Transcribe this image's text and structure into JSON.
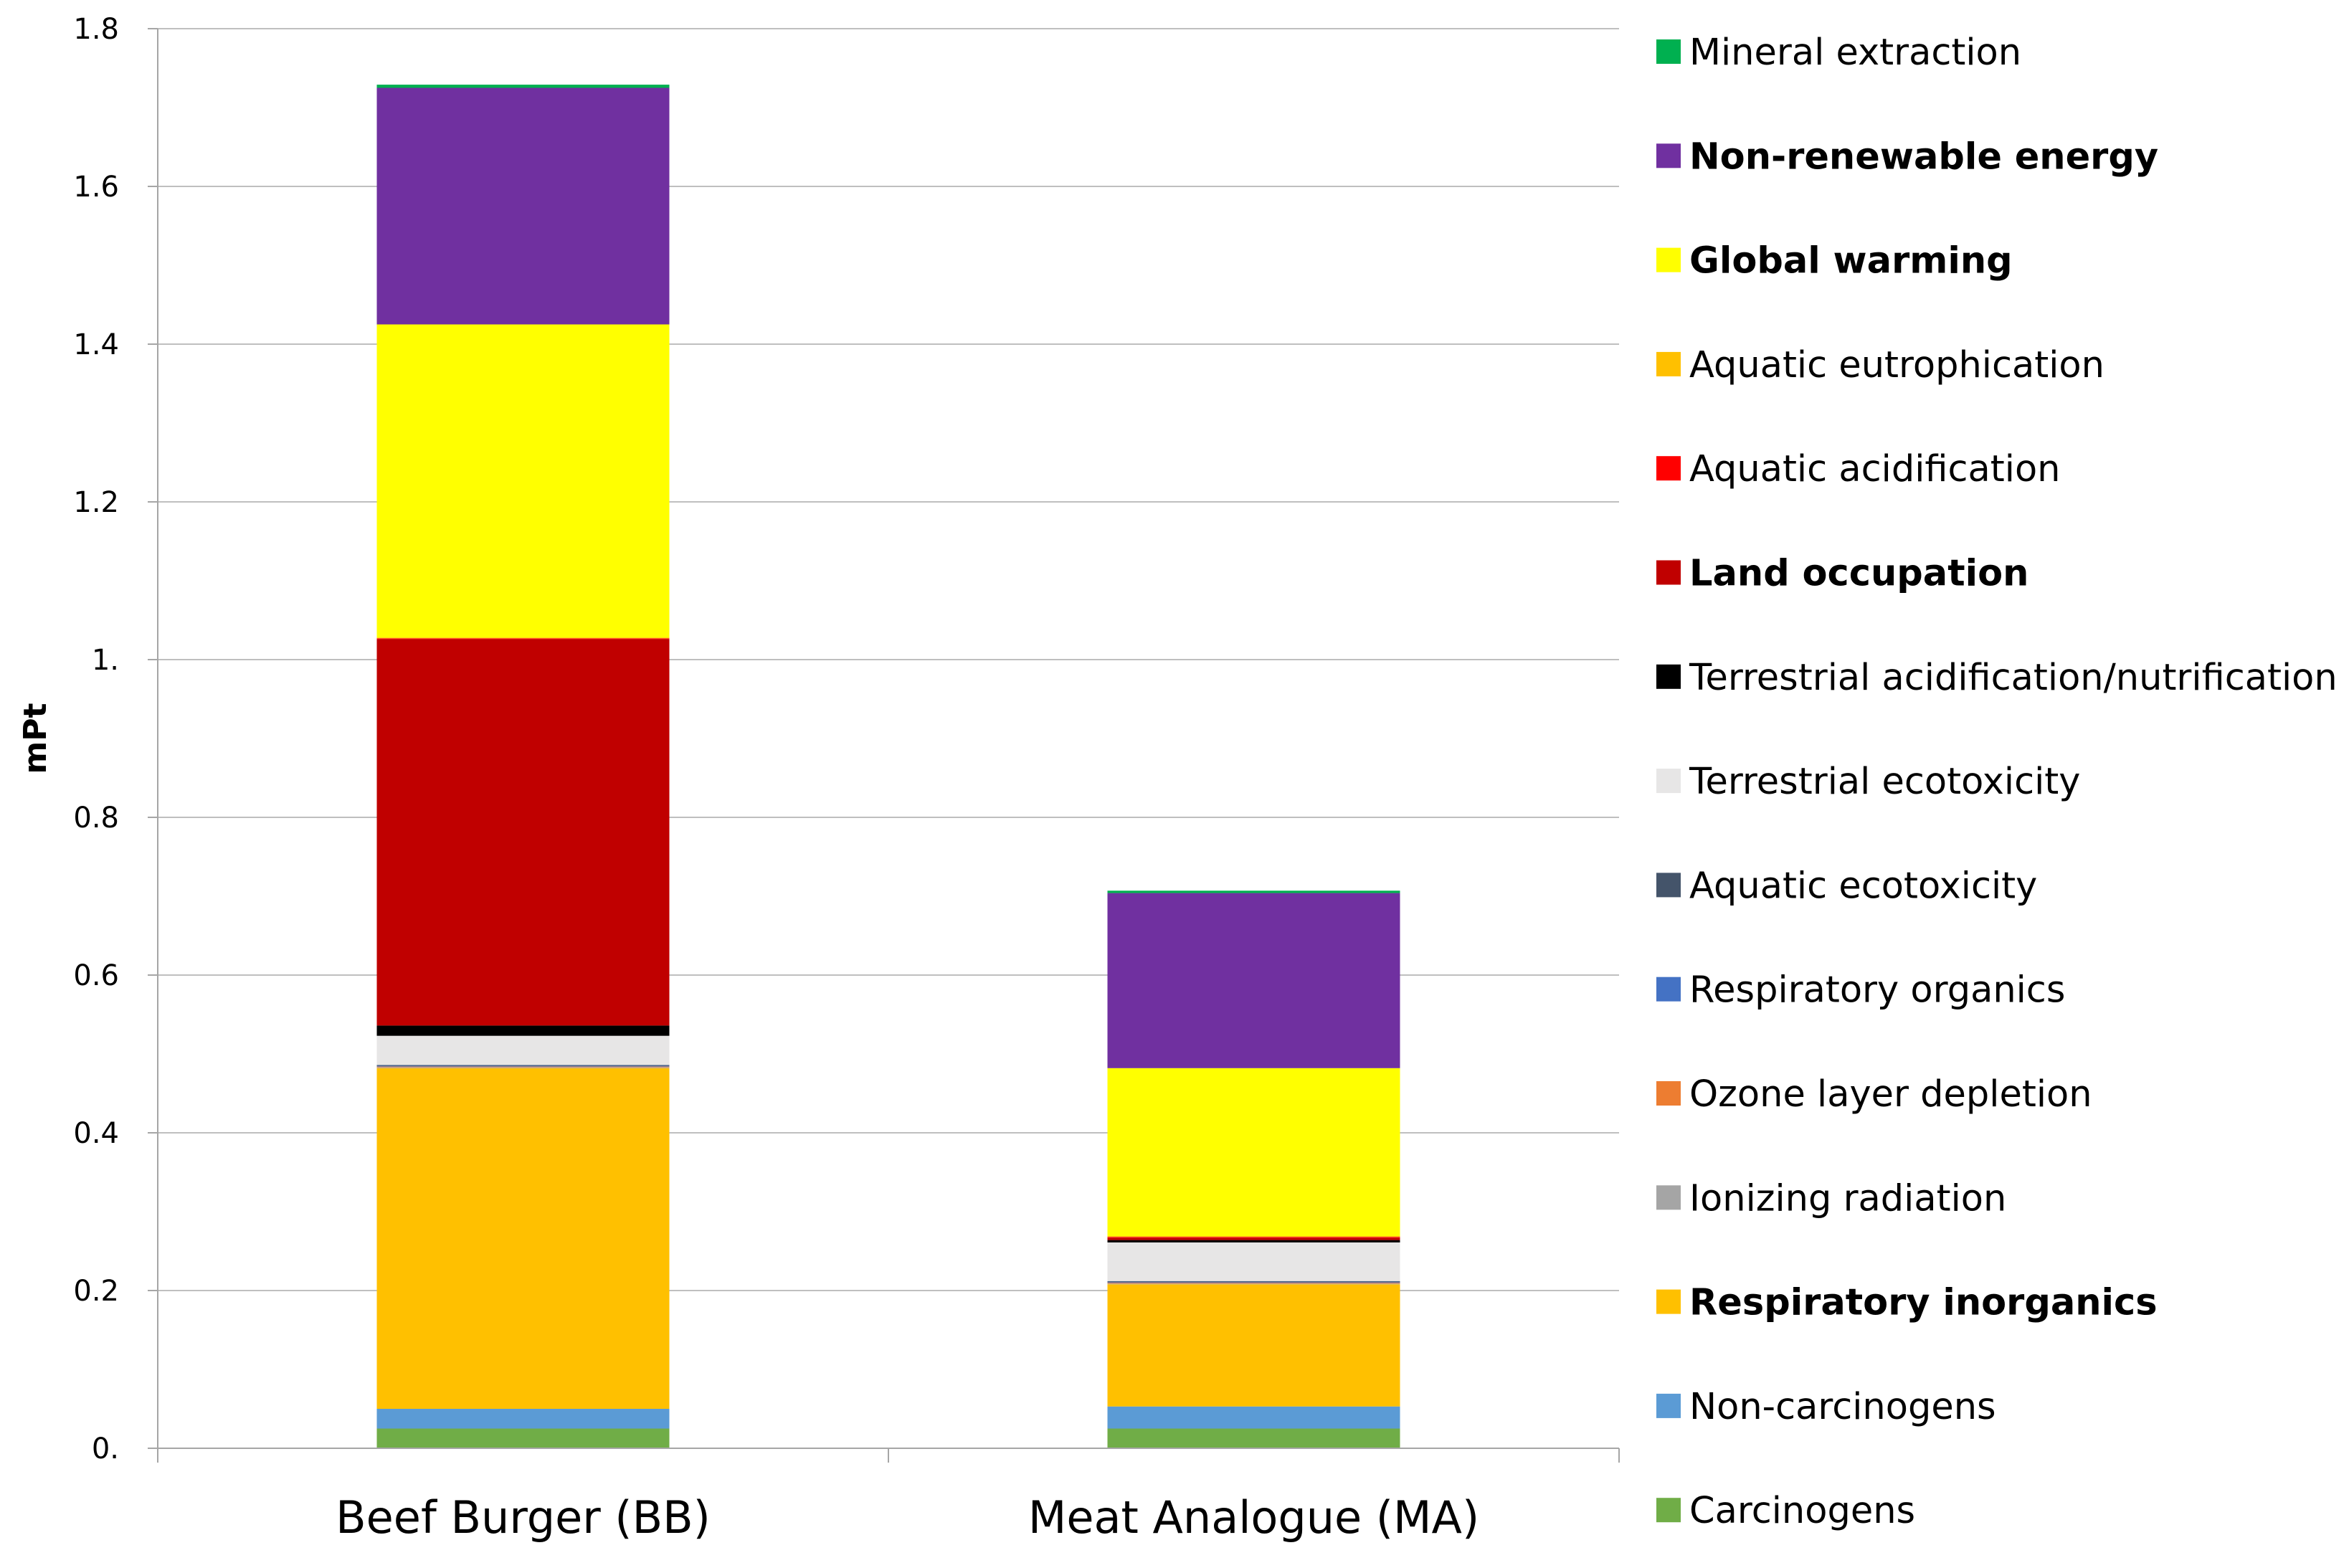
{
  "chart_data": {
    "type": "bar",
    "stacked": true,
    "title": "",
    "xlabel": "",
    "ylabel": "mPt",
    "ylim": [
      0,
      1.8
    ],
    "y_ticks": [
      {
        "value": 0,
        "label": "0."
      },
      {
        "value": 0.2,
        "label": "0.2"
      },
      {
        "value": 0.4,
        "label": "0.4"
      },
      {
        "value": 0.6,
        "label": "0.6"
      },
      {
        "value": 0.8,
        "label": "0.8"
      },
      {
        "value": 1.0,
        "label": "1."
      },
      {
        "value": 1.2,
        "label": "1.2"
      },
      {
        "value": 1.4,
        "label": "1.4"
      },
      {
        "value": 1.6,
        "label": "1.6"
      },
      {
        "value": 1.8,
        "label": "1.8"
      }
    ],
    "grid": true,
    "legend_position": "right",
    "categories": [
      "Beef Burger (BB)",
      "Meat Analogue (MA)"
    ],
    "series": [
      {
        "name": "Carcinogens",
        "color": "#70AD47",
        "bold": false,
        "values": [
          0.025,
          0.025
        ]
      },
      {
        "name": "Non-carcinogens",
        "color": "#5B9BD5",
        "bold": false,
        "values": [
          0.025,
          0.028
        ]
      },
      {
        "name": "Respiratory inorganics",
        "color": "#FFC000",
        "bold": true,
        "values": [
          0.432,
          0.155
        ]
      },
      {
        "name": "Ionizing radiation",
        "color": "#A5A5A5",
        "bold": false,
        "values": [
          0.001,
          0.001
        ]
      },
      {
        "name": "Ozone layer depletion",
        "color": "#ED7D31",
        "bold": false,
        "values": [
          0.001,
          0.001
        ]
      },
      {
        "name": "Respiratory organics",
        "color": "#4472C4",
        "bold": false,
        "values": [
          0.001,
          0.001
        ]
      },
      {
        "name": "Aquatic ecotoxicity",
        "color": "#44546A",
        "bold": false,
        "values": [
          0.001,
          0.001
        ]
      },
      {
        "name": "Terrestrial ecotoxicity",
        "color": "#E7E6E6",
        "bold": false,
        "values": [
          0.037,
          0.049
        ]
      },
      {
        "name": "Terrestrial acidification/nutrification",
        "color": "#000000",
        "bold": false,
        "values": [
          0.013,
          0.003
        ]
      },
      {
        "name": "Land occupation",
        "color": "#C00000",
        "bold": true,
        "values": [
          0.49,
          0.003
        ]
      },
      {
        "name": "Aquatic acidification",
        "color": "#FF0000",
        "bold": false,
        "values": [
          0.001,
          0.001
        ]
      },
      {
        "name": "Aquatic eutrophication",
        "color": "#FFC000",
        "bold": false,
        "values": [
          0.001,
          0.001
        ]
      },
      {
        "name": "Global warming",
        "color": "#FFFF00",
        "bold": true,
        "values": [
          0.397,
          0.213
        ]
      },
      {
        "name": "Non-renewable energy",
        "color": "#7030A0",
        "bold": true,
        "values": [
          0.3,
          0.222
        ]
      },
      {
        "name": "Mineral extraction",
        "color": "#00B050",
        "bold": false,
        "values": [
          0.004,
          0.003
        ]
      }
    ]
  },
  "colors": {
    "grid": "#BFBFBF",
    "axis": "#A6A6A6"
  }
}
